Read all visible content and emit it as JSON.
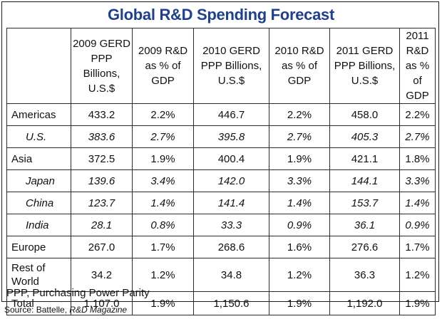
{
  "title": "Global R&D Spending Forecast",
  "colors": {
    "title": "#1f3f8f",
    "border": "#2a2a2a"
  },
  "table": {
    "headers": [
      "",
      "2009 GERD PPP Billions, U.S.$",
      "2009 R&D as % of GDP",
      "2010 GERD PPP Billions, U.S.$",
      "2010 R&D as % of GDP",
      "2011 GERD PPP Billions, U.S.$",
      "2011 R&D as % of GDP"
    ],
    "rows": [
      [
        "Americas",
        "433.2",
        "2.2%",
        "446.7",
        "2.2%",
        "458.0",
        "2.2%"
      ],
      [
        "U.S.",
        "383.6",
        "2.7%",
        "395.8",
        "2.7%",
        "405.3",
        "2.7%"
      ],
      [
        "Asia",
        "372.5",
        "1.9%",
        "400.4",
        "1.9%",
        "421.1",
        "1.8%"
      ],
      [
        "Japan",
        "139.6",
        "3.4%",
        "142.0",
        "3.3%",
        "144.1",
        "3.3%"
      ],
      [
        "China",
        "123.7",
        "1.4%",
        "141.4",
        "1.4%",
        "153.7",
        "1.4%"
      ],
      [
        "India",
        "28.1",
        "0.8%",
        "33.3",
        "0.9%",
        "36.1",
        "0.9%"
      ],
      [
        "Europe",
        "267.0",
        "1.7%",
        "268.6",
        "1.6%",
        "276.6",
        "1.7%"
      ],
      [
        "Rest of World",
        "34.2",
        "1.2%",
        "34.8",
        "1.2%",
        "36.3",
        "1.2%"
      ],
      [
        "Total",
        "1,107.0",
        "1.9%",
        "1,150.6",
        "1.9%",
        "1,192.0",
        "1.9%"
      ]
    ]
  },
  "footnote": "PPP, Purchasing Power Parity",
  "source": {
    "prefix": "Source: Battelle, ",
    "publication": "R&D Magazine"
  }
}
